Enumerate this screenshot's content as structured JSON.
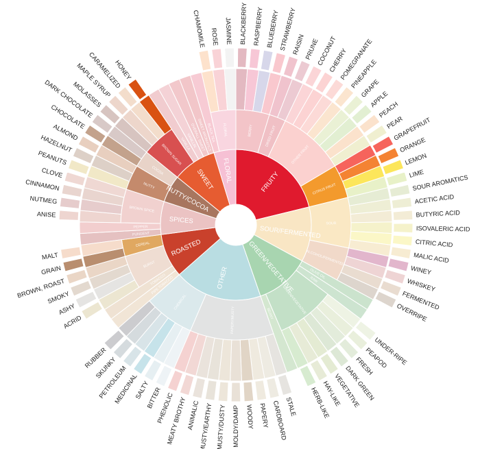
{
  "wheel": {
    "categories": [
      {
        "label": "Fruity",
        "color": "#e01a2e",
        "subs": [
          {
            "label": "Berry",
            "color": "#f3c4c8",
            "leaves": [
              {
                "label": "Blackberry",
                "color": "#e3b9c1"
              },
              {
                "label": "Raspberry",
                "color": "#f7c7d6"
              },
              {
                "label": "Blueberry",
                "color": "#d7d7ea"
              },
              {
                "label": "Strawberry",
                "color": "#f9c8ce"
              }
            ]
          },
          {
            "label": "Dried Fruit",
            "color": "#f0c0c5",
            "leaves": [
              {
                "label": "Raisin",
                "color": "#f0c3cd"
              },
              {
                "label": "Prune",
                "color": "#eccad2"
              }
            ]
          },
          {
            "label": "Other Fruit",
            "color": "#fbd1cf",
            "leaves": [
              {
                "label": "Coconut",
                "color": "#fbd5d7"
              },
              {
                "label": "Cherry",
                "color": "#fcd3d3"
              },
              {
                "label": "Pomegranate",
                "color": "#fcdad7"
              },
              {
                "label": "Pineapple",
                "color": "#fbe5cf"
              },
              {
                "label": "Grape",
                "color": "#eaf1d5"
              },
              {
                "label": "Apple",
                "color": "#e2efd2"
              },
              {
                "label": "Peach",
                "color": "#fbe2cc"
              },
              {
                "label": "Pear",
                "color": "#f0efd0"
              }
            ]
          },
          {
            "label": "Citrus Fruit",
            "color": "#f39a2d",
            "leaves": [
              {
                "label": "Grapefruit",
                "color": "#f6645c"
              },
              {
                "label": "Orange",
                "color": "#f48333"
              },
              {
                "label": "Lemon",
                "color": "#fce65b"
              },
              {
                "label": "Lime",
                "color": "#e8f1c8"
              }
            ]
          }
        ]
      },
      {
        "label": "Sour/Fermented",
        "color": "#f9e6c4",
        "subs": [
          {
            "label": "Sour",
            "color": "#fae8c4",
            "leaves": [
              {
                "label": "Sour Aromatics",
                "color": "#e6ecd4"
              },
              {
                "label": "Acetic Acid",
                "color": "#eeeed5"
              },
              {
                "label": "Butyric Acid",
                "color": "#f3ecd6"
              },
              {
                "label": "Isovaleric Acid",
                "color": "#f5f2cb"
              },
              {
                "label": "Citric Acid",
                "color": "#fbf7c7"
              },
              {
                "label": "Malic Acid",
                "color": "#f7ecd2"
              }
            ]
          },
          {
            "label": "Alcohol/Fermented",
            "color": "#f1d9c9",
            "leaves": [
              {
                "label": "Winey",
                "color": "#e2b6cc"
              },
              {
                "label": "Whiskey",
                "color": "#eed4d4"
              },
              {
                "label": "Fermented",
                "color": "#e9dcd0"
              },
              {
                "label": "Overripe",
                "color": "#ddd5cd"
              }
            ]
          }
        ]
      },
      {
        "label": "Green/Vegetative",
        "color": "#a8d5b0",
        "subs": [
          {
            "label": "Olive Oil",
            "color": "#cbe3cd",
            "leaves": []
          },
          {
            "label": "Raw",
            "color": "#cde4d0",
            "leaves": []
          },
          {
            "label": "Green/Vegetative",
            "color": "#c3e0c7",
            "leaves": [
              {
                "label": "Under-ripe",
                "color": "#eef3e4"
              },
              {
                "label": "Peapod",
                "color": "#e9efdc"
              },
              {
                "label": "Fresh",
                "color": "#e3ecdb"
              },
              {
                "label": "Dark Green",
                "color": "#dde8d6"
              },
              {
                "label": "Vegetative",
                "color": "#e4ebd3"
              },
              {
                "label": "Hay-like",
                "color": "#e7ebd7"
              },
              {
                "label": "Herb-like",
                "color": "#d7ebd0"
              }
            ]
          },
          {
            "label": "Beany",
            "color": "#d4e7d0",
            "leaves": []
          }
        ]
      },
      {
        "label": "Other",
        "color": "#b9dde2",
        "subs": [
          {
            "label": "Papery/Musty",
            "color": "#e2e3e3",
            "leaves": [
              {
                "label": "Stale",
                "color": "#e6e4e0"
              },
              {
                "label": "Cardboard",
                "color": "#eeebe2"
              },
              {
                "label": "Papery",
                "color": "#efeadf"
              },
              {
                "label": "Woody",
                "color": "#e1d5c6"
              },
              {
                "label": "Moldy/Damp",
                "color": "#e9e1d7"
              },
              {
                "label": "Musty/Dusty",
                "color": "#ede6da"
              },
              {
                "label": "Musty/Earthy",
                "color": "#e8e3da"
              },
              {
                "label": "Animalic",
                "color": "#eae3dc"
              },
              {
                "label": "Meaty Brothy",
                "color": "#f2d8d5"
              },
              {
                "label": "Phenolic",
                "color": "#f5d2d1"
              }
            ]
          },
          {
            "label": "Chemical",
            "color": "#dbe9ec",
            "leaves": [
              {
                "label": "Bitter",
                "color": "#eef3f6"
              },
              {
                "label": "Salty",
                "color": "#e6eff2"
              },
              {
                "label": "Medicinal",
                "color": "#c6e3ea"
              },
              {
                "label": "Petroleum",
                "color": "#d8e4e8"
              },
              {
                "label": "Skunky",
                "color": "#d5dbde"
              },
              {
                "label": "Rubber",
                "color": "#cccccf"
              }
            ]
          }
        ]
      },
      {
        "label": "Roasted",
        "color": "#c9412c",
        "subs": [
          {
            "label": "Pipe Tobacco",
            "color": "#f1e5d6",
            "leaves": []
          },
          {
            "label": "Tobacco",
            "color": "#efe2d3",
            "leaves": []
          },
          {
            "label": "Burnt",
            "color": "#efddd2",
            "leaves": [
              {
                "label": "Acrid",
                "color": "#ece6d1"
              },
              {
                "label": "Ashy",
                "color": "#e5e4e2"
              },
              {
                "label": "Smoky",
                "color": "#e3d9cf"
              },
              {
                "label": "Brown, Roast",
                "color": "#ead6c6"
              }
            ]
          },
          {
            "label": "Cereal",
            "color": "#e0a861",
            "leaves": [
              {
                "label": "Grain",
                "color": "#b98e6f"
              },
              {
                "label": "Malt",
                "color": "#f6dccb"
              }
            ]
          }
        ]
      },
      {
        "label": "Spices",
        "color": "#ebc3c3",
        "subs": [
          {
            "label": "Pungent",
            "color": "#e5c1c1",
            "leaves": []
          },
          {
            "label": "Pepper",
            "color": "#f2cece",
            "leaves": []
          },
          {
            "label": "Brown Spice",
            "color": "#f1d1cf",
            "leaves": [
              {
                "label": "Anise",
                "color": "#eed5d0"
              },
              {
                "label": "Nutmeg",
                "color": "#e6cccc"
              },
              {
                "label": "Cinnamon",
                "color": "#e9d5cf"
              },
              {
                "label": "Clove",
                "color": "#efd8d3"
              }
            ]
          }
        ]
      },
      {
        "label": "Nutty/Cocoa",
        "color": "#a8765f",
        "subs": [
          {
            "label": "Nutty",
            "color": "#c48a6c",
            "leaves": [
              {
                "label": "Peanuts",
                "color": "#f1e8c7"
              },
              {
                "label": "Hazelnut",
                "color": "#ddd0c7"
              },
              {
                "label": "Almond",
                "color": "#e8cfbf"
              }
            ]
          },
          {
            "label": "Cocoa",
            "color": "#e8d3c8",
            "leaves": [
              {
                "label": "Chocolate",
                "color": "#c3a28c"
              },
              {
                "label": "Dark Chocolate",
                "color": "#d8c9c7"
              }
            ]
          }
        ]
      },
      {
        "label": "Sweet",
        "color": "#e65c31",
        "subs": [
          {
            "label": "Brown Sugar",
            "color": "#d85050",
            "leaves": [
              {
                "label": "Molasses",
                "color": "#d7c4c0"
              },
              {
                "label": "Maple Syrup",
                "color": "#edd6cb"
              },
              {
                "label": "Caramelized",
                "color": "#f3ddcb"
              },
              {
                "label": "Honey",
                "color": "#d95212"
              }
            ]
          },
          {
            "label": "Vanilla",
            "color": "#f1cccf",
            "leaves": []
          },
          {
            "label": "Vanillin",
            "color": "#f4d2d6",
            "leaves": []
          },
          {
            "label": "Overall Sweet",
            "color": "#f2c8cb",
            "leaves": []
          },
          {
            "label": "Sweet Aromatics",
            "color": "#f2c6c9",
            "leaves": []
          }
        ]
      },
      {
        "label": "Floral",
        "color": "#f6c0d4",
        "subs": [
          {
            "label": "Black Tea",
            "color": "#f7cbd4",
            "leaves": []
          },
          {
            "label": "Floral",
            "color": "#f9d6e0",
            "leaves": [
              {
                "label": "Chamomile",
                "color": "#fde2cc"
              },
              {
                "label": "Rose",
                "color": "#f9d3d7"
              },
              {
                "label": "Jasmine",
                "color": "#f3f3f3"
              }
            ]
          }
        ]
      }
    ]
  }
}
